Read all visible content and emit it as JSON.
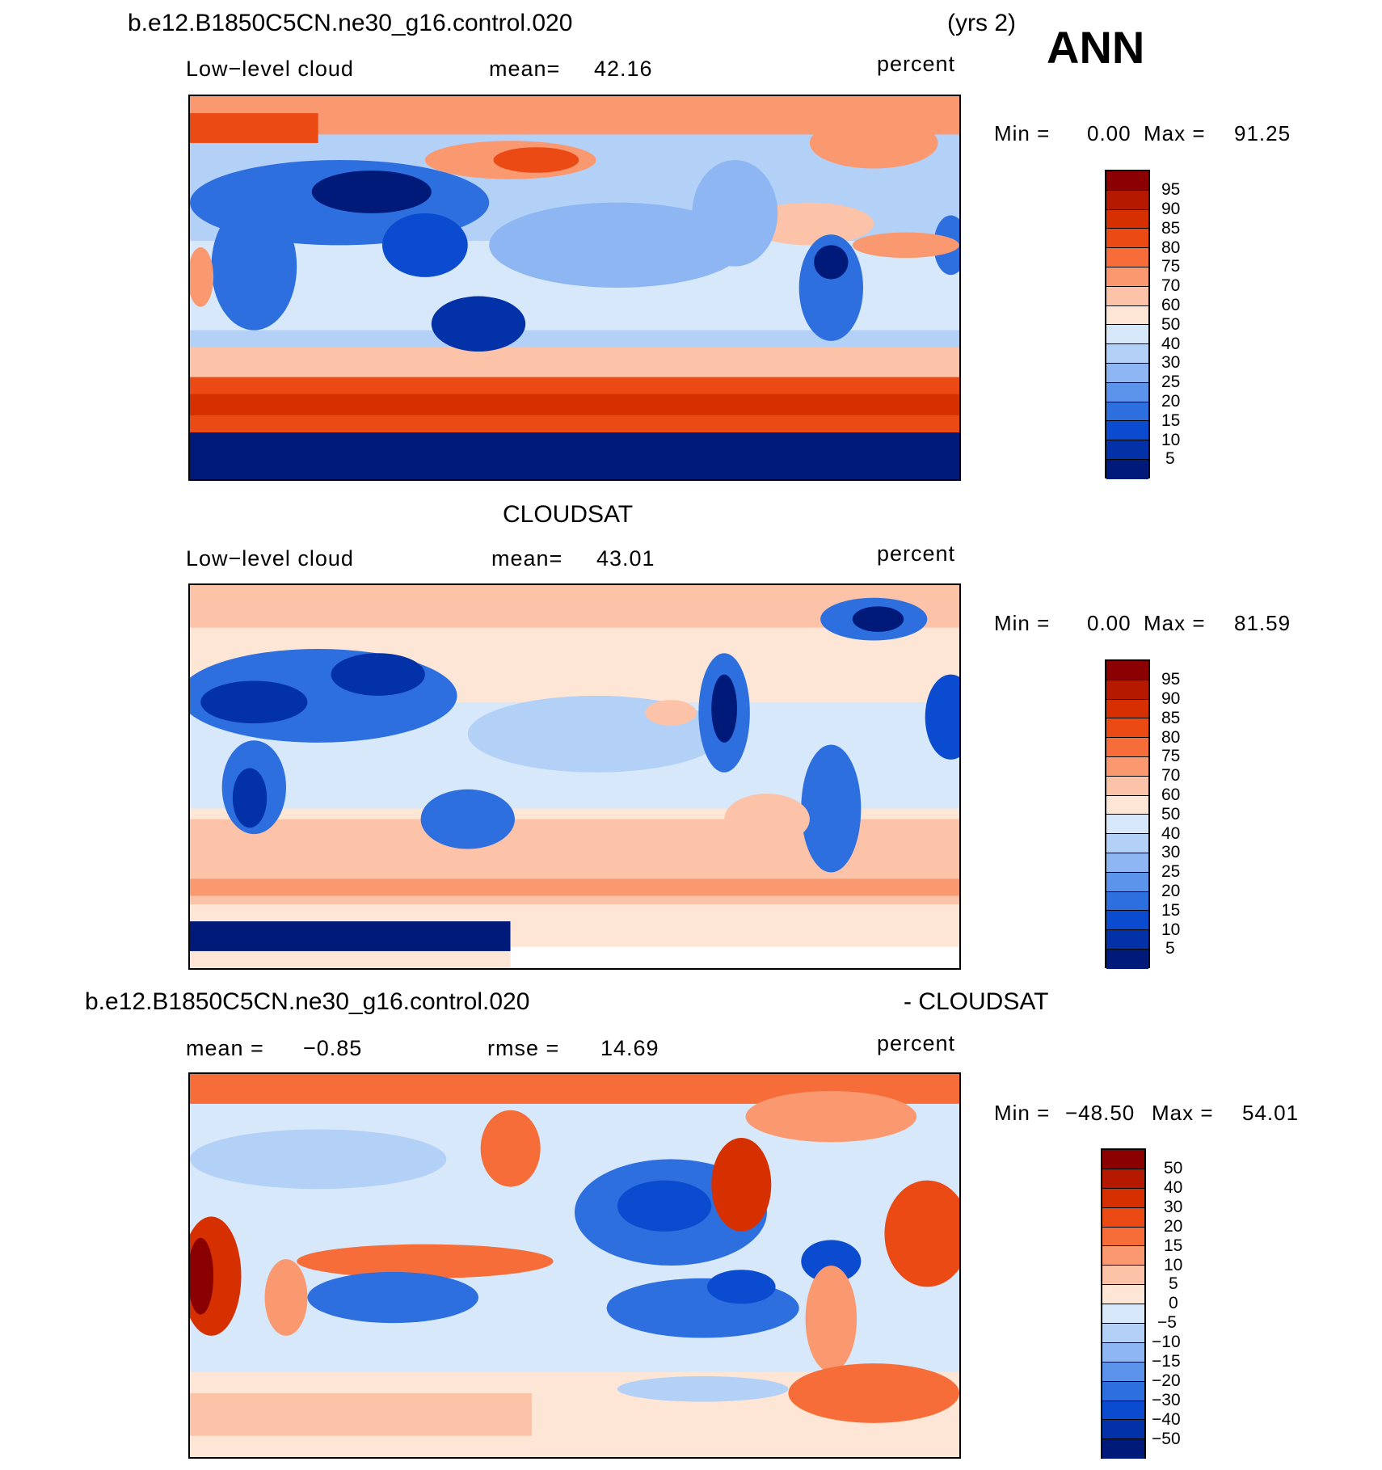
{
  "header": {
    "case_name": "b.e12.B1850C5CN.ne30_g16.control.020",
    "years": "(yrs 2)",
    "season": "ANN"
  },
  "panels": [
    {
      "id": "model",
      "title": "",
      "variable": "Low−level cloud",
      "mean_label": "mean=",
      "mean_value": "42.16",
      "units": "percent",
      "min_label": "Min =",
      "min_value": "0.00",
      "max_label": "Max =",
      "max_value": "91.25",
      "colorbar": {
        "labels": [
          "95",
          "90",
          "85",
          "80",
          "75",
          "70",
          "60",
          "50",
          "40",
          "30",
          "25",
          "20",
          "15",
          "10",
          "5"
        ],
        "colors": [
          "#8b0000",
          "#b51a00",
          "#d73000",
          "#ec4a15",
          "#f66d3a",
          "#fa9870",
          "#fcc3a8",
          "#fde6d5",
          "#d6e8fa",
          "#b3d0f7",
          "#8db6f2",
          "#5b94ea",
          "#2e6fe0",
          "#0b4bd0",
          "#0231a8",
          "#001a7a"
        ]
      }
    },
    {
      "id": "obs",
      "title": "CLOUDSAT",
      "variable": "Low−level cloud",
      "mean_label": "mean=",
      "mean_value": "43.01",
      "units": "percent",
      "min_label": "Min =",
      "min_value": "0.00",
      "max_label": "Max =",
      "max_value": "81.59",
      "colorbar": {
        "labels": [
          "95",
          "90",
          "85",
          "80",
          "75",
          "70",
          "60",
          "50",
          "40",
          "30",
          "25",
          "20",
          "15",
          "10",
          "5"
        ],
        "colors": [
          "#8b0000",
          "#b51a00",
          "#d73000",
          "#ec4a15",
          "#f66d3a",
          "#fa9870",
          "#fcc3a8",
          "#fde6d5",
          "#d6e8fa",
          "#b3d0f7",
          "#8db6f2",
          "#5b94ea",
          "#2e6fe0",
          "#0b4bd0",
          "#0231a8",
          "#001a7a"
        ]
      }
    },
    {
      "id": "diff",
      "title_left": "b.e12.B1850C5CN.ne30_g16.control.020",
      "title_right": "- CLOUDSAT",
      "mean_label": "mean =",
      "mean_value": "−0.85",
      "rmse_label": "rmse =",
      "rmse_value": "14.69",
      "units": "percent",
      "min_label": "Min =",
      "min_value": "−48.50",
      "max_label": "Max =",
      "max_value": "54.01",
      "colorbar": {
        "labels": [
          "50",
          "40",
          "30",
          "20",
          "15",
          "10",
          "5",
          "0",
          "−5",
          "−10",
          "−15",
          "−20",
          "−30",
          "−40",
          "−50"
        ],
        "colors": [
          "#8b0000",
          "#b51a00",
          "#d73000",
          "#ec4a15",
          "#f66d3a",
          "#fa9870",
          "#fcc3a8",
          "#fde6d5",
          "#d6e8fa",
          "#b3d0f7",
          "#8db6f2",
          "#5b94ea",
          "#2e6fe0",
          "#0b4bd0",
          "#0231a8",
          "#001a7a"
        ]
      }
    }
  ]
}
